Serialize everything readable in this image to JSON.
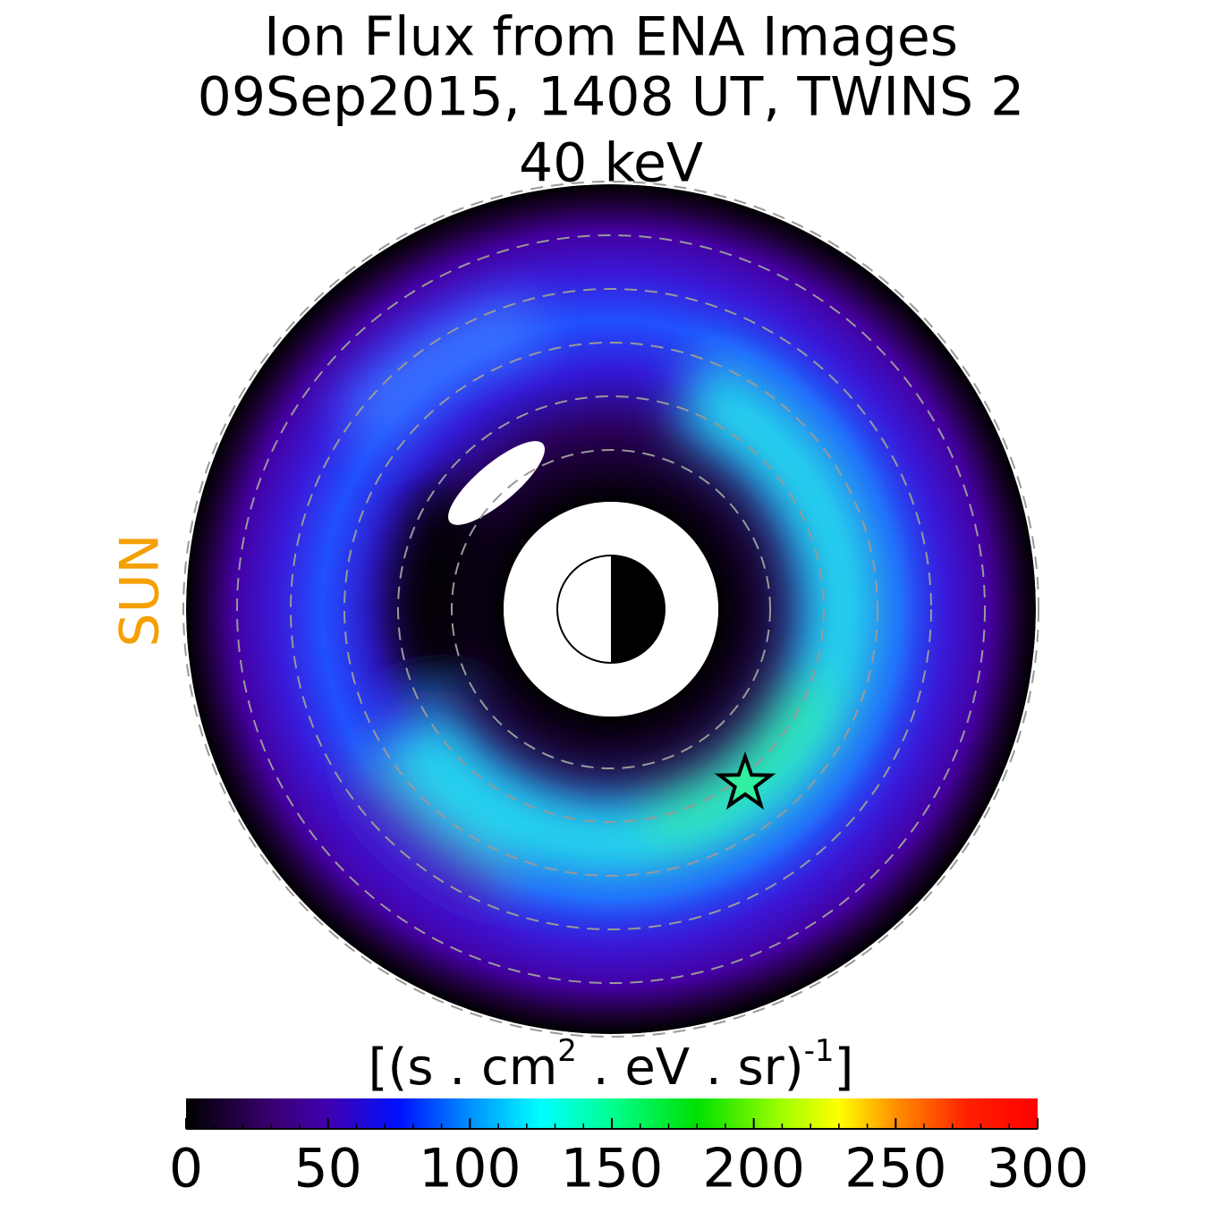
{
  "chart_data": {
    "type": "heatmap",
    "title": [
      "Ion Flux from  ENA Images",
      "09Sep2015, 1408 UT,  TWINS 2",
      "40 keV"
    ],
    "annotation": "SUN",
    "colorbar_label": [
      "[(s . cm",
      "2",
      " . eV . sr)",
      "-1",
      "]"
    ],
    "colorbar": {
      "lim": [
        0,
        300
      ],
      "ticks": [
        0,
        50,
        100,
        150,
        200,
        250,
        300
      ],
      "minor_ticks": [
        10,
        20,
        30,
        40,
        60,
        70,
        80,
        90,
        110,
        120,
        130,
        140,
        160,
        170,
        180,
        190,
        210,
        220,
        230,
        240,
        260,
        270,
        280,
        290
      ],
      "colormap": [
        {
          "value": 0,
          "color": "#000000"
        },
        {
          "value": 30,
          "color": "#3a0070"
        },
        {
          "value": 50,
          "color": "#4000b0"
        },
        {
          "value": 75,
          "color": "#0010ff"
        },
        {
          "value": 100,
          "color": "#0090ff"
        },
        {
          "value": 125,
          "color": "#00ffff"
        },
        {
          "value": 150,
          "color": "#00ff90"
        },
        {
          "value": 180,
          "color": "#00e000"
        },
        {
          "value": 210,
          "color": "#a0ff00"
        },
        {
          "value": 230,
          "color": "#ffff00"
        },
        {
          "value": 250,
          "color": "#ff9000"
        },
        {
          "value": 275,
          "color": "#ff2000"
        },
        {
          "value": 300,
          "color": "#ff0000"
        }
      ]
    }
  }
}
